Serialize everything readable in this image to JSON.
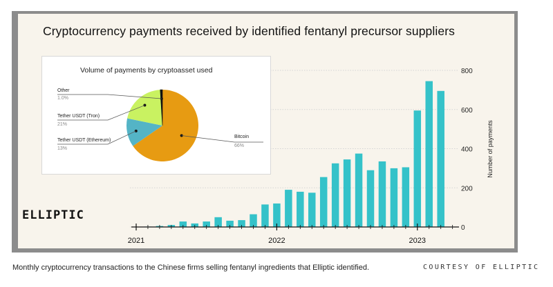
{
  "title": "Cryptocurrency payments received by identified fentanyl precursor suppliers",
  "logo": "ELLIPTIC",
  "caption": "Monthly cryptocurrency transactions to the Chinese firms selling fentanyl ingredients that Elliptic identified.",
  "credit": "COURTESY OF ELLIPTIC",
  "colors": {
    "bar": "#35c2c9",
    "bitcoin": "#e79b12",
    "tether_tron": "#c9f261",
    "tether_eth": "#54b4c6",
    "other": "#111111"
  },
  "chart_data": [
    {
      "type": "bar",
      "ylabel": "Number of payments",
      "ylim": [
        0,
        800
      ],
      "yticks": [
        "0",
        "200",
        "400",
        "600",
        "800"
      ],
      "xtick_labels": [
        "2021",
        "2022",
        "2023"
      ],
      "categories": [
        "2021-02",
        "2021-03",
        "2021-04",
        "2021-05",
        "2021-06",
        "2021-07",
        "2021-08",
        "2021-09",
        "2021-10",
        "2021-11",
        "2021-12",
        "2022-01",
        "2022-02",
        "2022-03",
        "2022-04",
        "2022-05",
        "2022-06",
        "2022-07",
        "2022-08",
        "2022-09",
        "2022-10",
        "2022-11",
        "2022-12",
        "2023-01",
        "2023-02",
        "2023-03",
        "2023-04"
      ],
      "values": [
        2,
        5,
        10,
        28,
        18,
        28,
        50,
        32,
        35,
        65,
        115,
        120,
        190,
        180,
        175,
        255,
        325,
        345,
        375,
        290,
        335,
        300,
        305,
        595,
        745,
        695,
        0
      ],
      "grid": true
    },
    {
      "type": "pie",
      "title": "Volume of payments by cryptoasset used",
      "slices": [
        {
          "label": "Bitcoin",
          "value": 66,
          "display": "66%"
        },
        {
          "label": "Tether USDT (Ethereum)",
          "value": 13,
          "display": "13%"
        },
        {
          "label": "Tether USDT (Tron)",
          "value": 21,
          "display": "21%"
        },
        {
          "label": "Other",
          "value": 1.0,
          "display": "1.0%"
        }
      ]
    }
  ]
}
